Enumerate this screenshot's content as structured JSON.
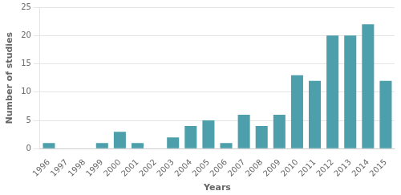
{
  "chart_data": {
    "type": "bar",
    "categories": [
      "1996",
      "1997",
      "1998",
      "1999",
      "2000",
      "2001",
      "2002",
      "2003",
      "2004",
      "2005",
      "2006",
      "2007",
      "2008",
      "2009",
      "2010",
      "2011",
      "2012",
      "2013",
      "2014",
      "2015"
    ],
    "values": [
      1,
      0,
      0,
      1,
      3,
      1,
      0,
      2,
      4,
      5,
      1,
      6,
      4,
      6,
      13,
      12,
      20,
      20,
      22,
      12
    ],
    "color": "#4d9fac",
    "xlabel": "Years",
    "ylabel": "Number of studies",
    "ylim": [
      0,
      25
    ],
    "yticks": [
      0,
      5,
      10,
      15,
      20,
      25
    ],
    "grid": true
  }
}
